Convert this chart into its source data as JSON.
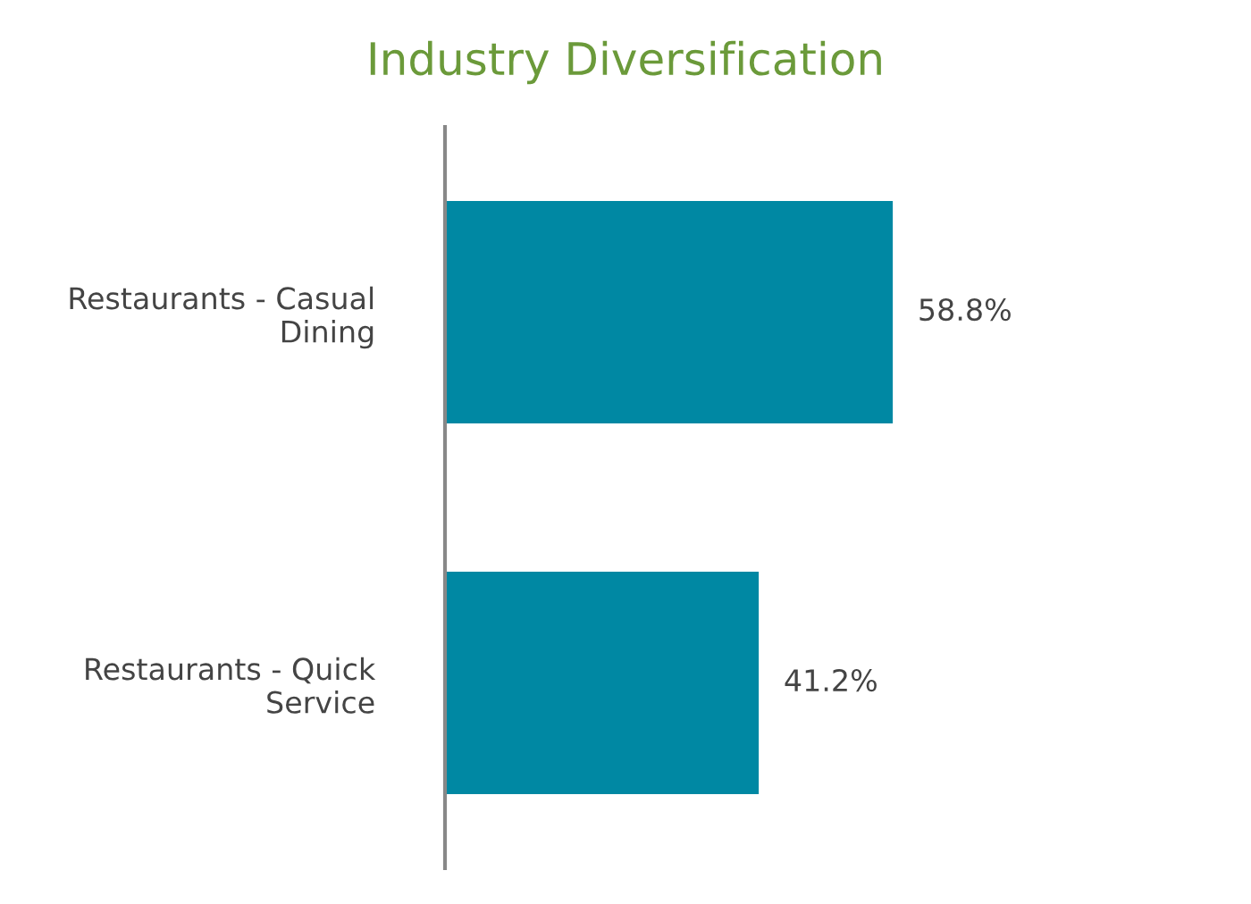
{
  "chart_data": {
    "type": "bar",
    "orientation": "horizontal",
    "title": "Industry Diversification",
    "categories": [
      "Restaurants - Casual\nDining",
      "Restaurants - Quick\nService"
    ],
    "values": [
      58.8,
      41.2
    ],
    "value_labels": [
      "58.8%",
      "41.2%"
    ],
    "color": "#0088a3",
    "grid": false,
    "legend": false
  }
}
